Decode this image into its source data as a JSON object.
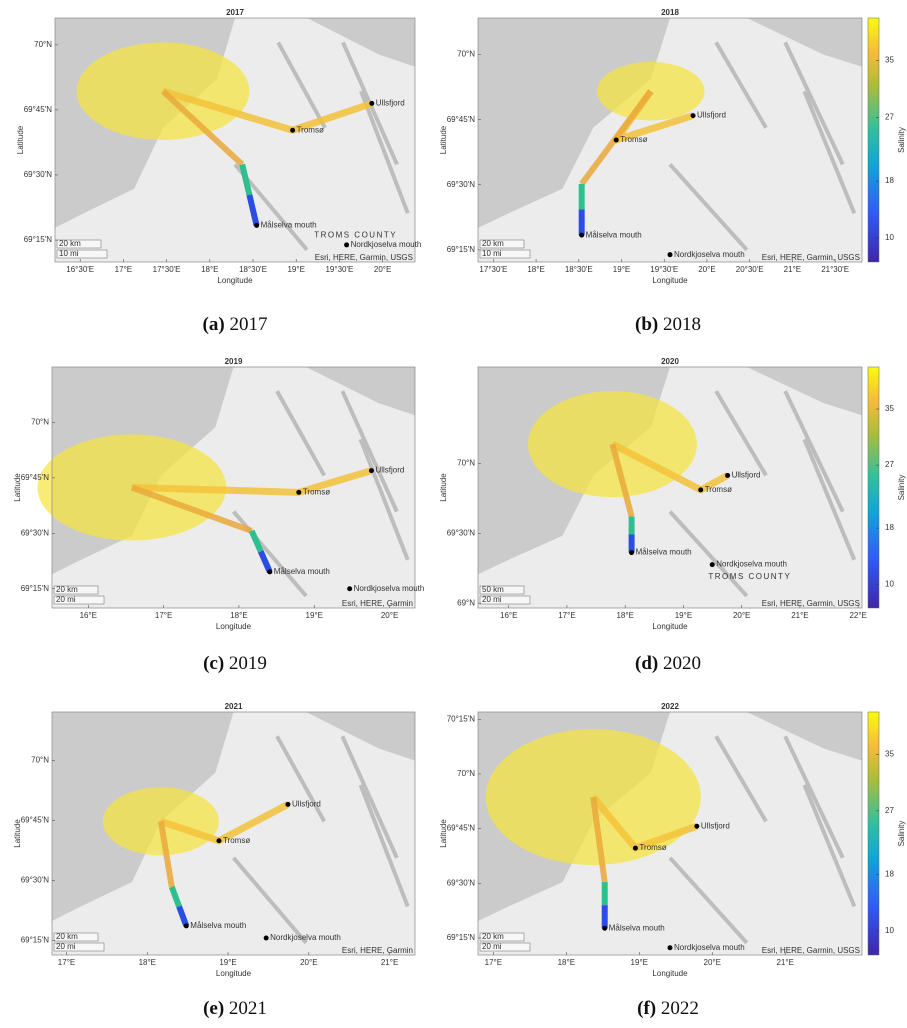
{
  "panels": [
    {
      "title": "2017",
      "caption": "(a)",
      "xlabel": "Longitude",
      "ylabel": "Latitude",
      "xticks": [
        "16°30'E",
        "17°E",
        "17°30'E",
        "18°E",
        "18°30'E",
        "19°E",
        "19°30'E",
        "20°E"
      ],
      "yticks": [
        "70°N",
        "69°45'N",
        "69°30'N",
        "69°15'N"
      ],
      "places": [
        "Tromsø",
        "Ullsfjord",
        "Målselva mouth",
        "Nordkjoselva mouth"
      ],
      "region": "TROMS COUNTY",
      "scale": [
        "20 km",
        "10 mi"
      ],
      "attribution": "Esri, HERE, Garmin, USGS"
    },
    {
      "title": "2018",
      "caption": "(b)",
      "xlabel": "Longitude",
      "ylabel": "Latitude",
      "xticks": [
        "17°30'E",
        "18°E",
        "18°30'E",
        "19°E",
        "19°30'E",
        "20°E",
        "20°30'E",
        "21°E",
        "21°30'E"
      ],
      "yticks": [
        "70°N",
        "69°45'N",
        "69°30'N",
        "69°15'N"
      ],
      "places": [
        "Tromsø",
        "Ullsfjord",
        "Målselva mouth",
        "Nordkjoselva mouth"
      ],
      "scale": [
        "20 km",
        "10 mi"
      ],
      "attribution": "Esri, HERE, Garmin, USGS",
      "colorbar": {
        "label": "Salinity",
        "ticks": [
          10,
          18,
          27,
          35
        ],
        "lim": [
          6.6,
          41
        ]
      }
    },
    {
      "title": "2019",
      "caption": "(c)",
      "xlabel": "Longitude",
      "ylabel": "Latitude",
      "xticks": [
        "16°E",
        "17°E",
        "18°E",
        "19°E",
        "20°E"
      ],
      "yticks": [
        "70°N",
        "69°45'N",
        "69°30'N",
        "69°15'N"
      ],
      "places": [
        "Tromsø",
        "Ullsfjord",
        "Målselva mouth",
        "Nordkjoselva mouth"
      ],
      "scale": [
        "20 km",
        "20 mi"
      ],
      "attribution": "Esri, HERE, Garmin"
    },
    {
      "title": "2020",
      "caption": "(d)",
      "xlabel": "Longitude",
      "ylabel": "Latitude",
      "xticks": [
        "16°E",
        "17°E",
        "18°E",
        "19°E",
        "20°E",
        "21°E",
        "22°E"
      ],
      "yticks": [
        "70°N",
        "69°30'N",
        "69°N"
      ],
      "places": [
        "Tromsø",
        "Ullsfjord",
        "Målselva mouth",
        "Nordkjoselva mouth"
      ],
      "region": "TROMS COUNTY",
      "scale": [
        "50 km",
        "20 mi"
      ],
      "attribution": "Esri, HERE, Garmin, USGS",
      "colorbar": {
        "label": "Salinity",
        "ticks": [
          10,
          18,
          27,
          35
        ],
        "lim": [
          6.6,
          41
        ]
      }
    },
    {
      "title": "2021",
      "caption": "(e)",
      "xlabel": "Longitude",
      "ylabel": "Latitude",
      "xticks": [
        "17°E",
        "18°E",
        "19°E",
        "20°E",
        "21°E"
      ],
      "yticks": [
        "70°N",
        "69°45'N",
        "69°30'N",
        "69°15'N"
      ],
      "places": [
        "Tromsø",
        "Ullsfjord",
        "Målselva mouth",
        "Nordkjoselva mouth"
      ],
      "scale": [
        "20 km",
        "20 mi"
      ],
      "attribution": "Esri, HERE, Garmin"
    },
    {
      "title": "2022",
      "caption": "(f)",
      "xlabel": "Longitude",
      "ylabel": "Latitude",
      "xticks": [
        "17°E",
        "18°E",
        "19°E",
        "20°E",
        "21°E"
      ],
      "yticks": [
        "70°15'N",
        "70°N",
        "69°45'N",
        "69°30'N",
        "69°15'N"
      ],
      "places": [
        "Tromsø",
        "Ullsfjord",
        "Målselva mouth",
        "Nordkjoselva mouth"
      ],
      "scale": [
        "20 km",
        "20 mi"
      ],
      "attribution": "Esri, HERE, Garmin, USGS",
      "colorbar": {
        "label": "Salinity",
        "ticks": [
          10,
          18,
          27,
          35
        ],
        "lim": [
          6.6,
          41
        ]
      }
    }
  ]
}
